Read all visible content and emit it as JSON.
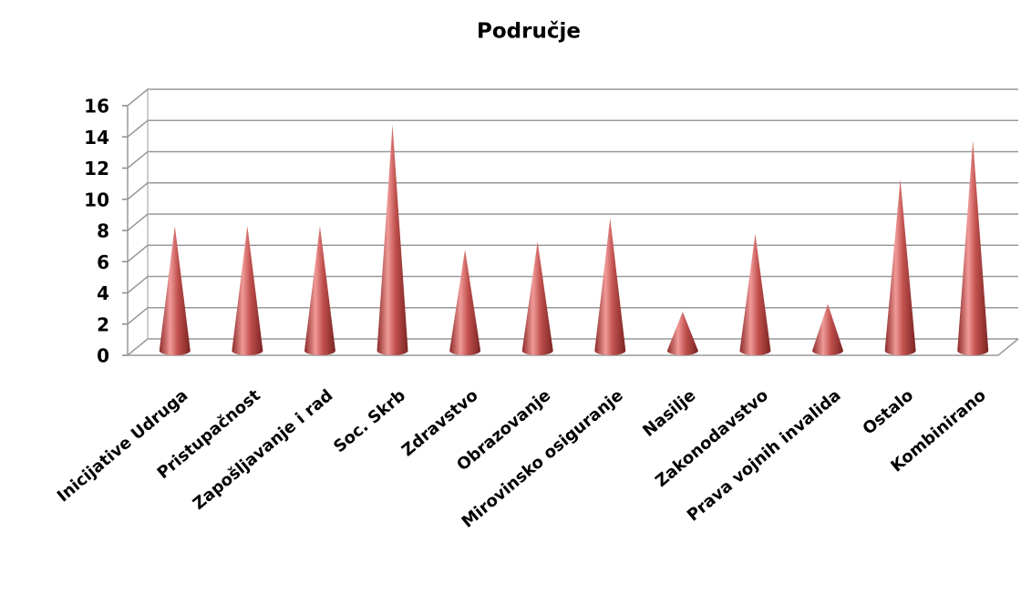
{
  "chart_data": {
    "type": "cone",
    "title": "Područje",
    "categories": [
      "Inicijative Udruga",
      "Pristupačnost",
      "Zapošljavanje i rad",
      "Soc. Skrb",
      "Zdravstvo",
      "Obrazovanje",
      "Mirovinsko osiguranje",
      "Nasilje",
      "Zakonodavstvo",
      "Prava vojnih invalida",
      "Ostalo",
      "Kombinirano"
    ],
    "values": [
      8,
      8,
      8,
      14.5,
      6.5,
      7,
      8.5,
      2.5,
      7.5,
      3,
      11,
      13.5
    ],
    "color": "#c0504d",
    "ylim": [
      0,
      16
    ],
    "yticks": [
      0,
      2,
      4,
      6,
      8,
      10,
      12,
      14,
      16
    ],
    "grid": true
  }
}
